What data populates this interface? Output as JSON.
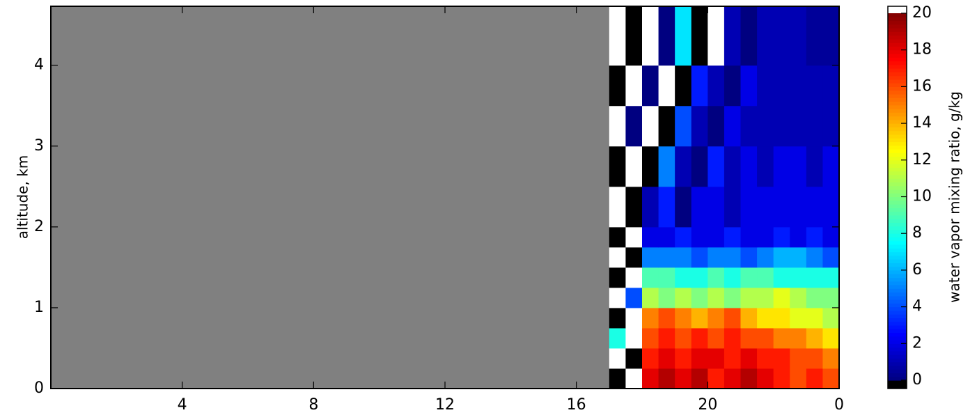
{
  "chart_data": {
    "type": "heatmap",
    "ylabel": "altitude, km",
    "colorbar_label": "water vapor mixing ratio, g/kg",
    "colormap": "jet",
    "under_color": "#000000",
    "over_color": "#ffffff",
    "bad_color": "#808080",
    "clim": [
      0,
      20
    ],
    "cticks": [
      0,
      2,
      4,
      6,
      8,
      10,
      12,
      14,
      16,
      18,
      20
    ],
    "xlim": [
      0,
      24
    ],
    "xticks": [
      4,
      8,
      12,
      16,
      20,
      {
        "value": 24,
        "label": "0"
      }
    ],
    "ylim": [
      0,
      4.73
    ],
    "yticks": [
      0,
      1,
      2,
      3,
      4
    ],
    "x_edges": [
      0,
      17,
      17.5,
      18,
      18.5,
      19,
      19.5,
      20,
      20.5,
      21,
      21.5,
      22,
      22.5,
      23,
      23.5,
      24
    ],
    "y_edges": [
      0,
      0.25,
      0.5,
      0.75,
      1,
      1.25,
      1.5,
      1.75,
      2,
      2.5,
      3,
      3.5,
      4,
      4.73
    ],
    "values": [
      [
        null,
        -2,
        24,
        18,
        19,
        18,
        19,
        17,
        18,
        19,
        18,
        17,
        16,
        17,
        16
      ],
      [
        null,
        23,
        -1,
        17,
        18,
        17,
        18,
        18,
        17,
        18,
        17,
        17,
        16,
        16,
        15
      ],
      [
        null,
        8,
        22,
        16,
        17,
        16,
        17,
        16,
        17,
        16,
        16,
        15,
        15,
        14,
        13
      ],
      [
        null,
        -3,
        21,
        15,
        16,
        15,
        14,
        15,
        16,
        14,
        13,
        13,
        12,
        12,
        11
      ],
      [
        null,
        25,
        4,
        11,
        10,
        11,
        10,
        11,
        10,
        11,
        11,
        12,
        11,
        10,
        10
      ],
      [
        null,
        -1,
        23,
        9,
        9,
        8,
        8,
        9,
        8,
        9,
        9,
        8,
        8,
        8,
        8
      ],
      [
        null,
        20.5,
        -2,
        5,
        5,
        5,
        4,
        5,
        5,
        4,
        5,
        6,
        6,
        5,
        4
      ],
      [
        null,
        -1,
        24,
        2,
        2,
        3,
        2,
        2,
        3,
        2,
        2,
        3,
        2,
        3,
        2
      ],
      [
        null,
        22,
        -2,
        1,
        3,
        0,
        2,
        2,
        1,
        2,
        2,
        2,
        2,
        2,
        2
      ],
      [
        null,
        -3,
        21,
        -1,
        5,
        1,
        0,
        3,
        1,
        2,
        1,
        2,
        2,
        1,
        2
      ],
      [
        null,
        24,
        0,
        21,
        -1,
        4,
        1,
        0,
        2,
        1,
        1,
        1,
        1,
        1,
        1
      ],
      [
        null,
        -2,
        23,
        0,
        22,
        -1,
        3,
        1,
        0,
        2,
        1,
        1,
        1,
        1,
        1
      ],
      [
        null,
        22,
        -1,
        20.5,
        0,
        7,
        -1,
        22,
        1,
        0,
        1,
        1,
        1,
        0.5,
        0.5
      ]
    ]
  }
}
